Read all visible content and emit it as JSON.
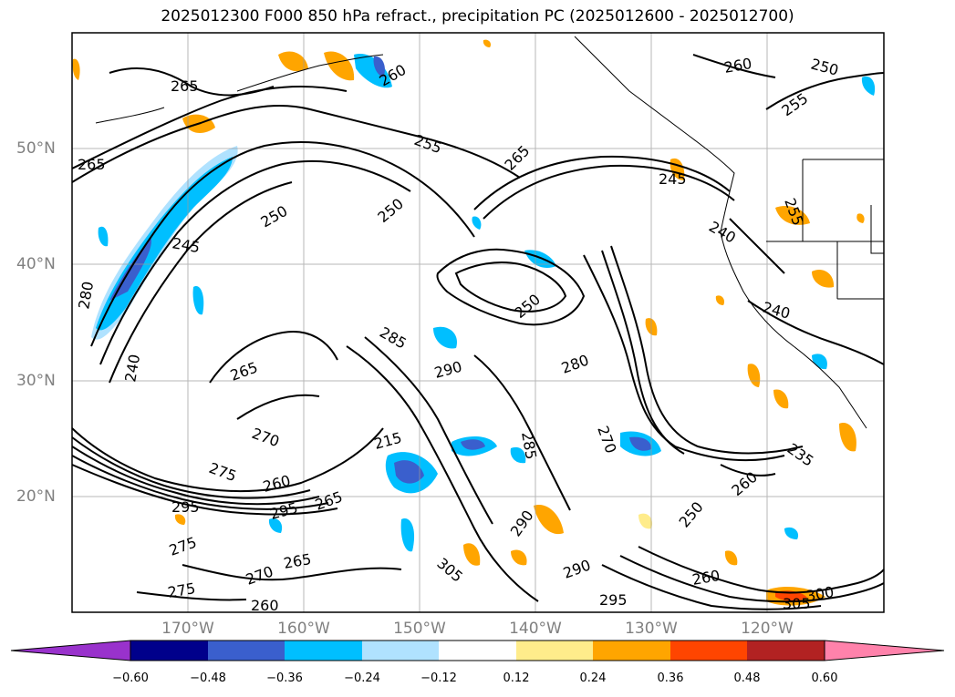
{
  "title": "2025012300 F000 850 hPa refract., precipitation PC (2025012600 - 2025012700)",
  "lat_labels": [
    "50°N",
    "40°N",
    "30°N",
    "20°N"
  ],
  "lon_labels": [
    "170°W",
    "160°W",
    "150°W",
    "140°W",
    "130°W",
    "120°W"
  ],
  "colorbar": {
    "colors": [
      "#9932cc",
      "#00008b",
      "#3a5fcd",
      "#00bfff",
      "#b0e2ff",
      "#ffffff",
      "#ffec8b",
      "#ffa500",
      "#ff4500",
      "#b22222",
      "#ff82ab"
    ],
    "tick_labels": [
      "−0.60",
      "−0.48",
      "−0.36",
      "−0.24",
      "−0.12",
      "0.12",
      "0.24",
      "0.36",
      "0.48",
      "0.60"
    ]
  },
  "contour_labels": [
    "265",
    "260",
    "250",
    "255",
    "265",
    "250",
    "245",
    "260",
    "265",
    "250",
    "245",
    "255",
    "240",
    "280",
    "255",
    "285",
    "250",
    "265",
    "290",
    "280",
    "240",
    "240",
    "270",
    "275",
    "215",
    "260",
    "285",
    "270",
    "235",
    "295",
    "265",
    "295",
    "260",
    "275",
    "290",
    "290",
    "250",
    "260",
    "260",
    "270",
    "305",
    "295",
    "305",
    "300",
    "275",
    "265"
  ],
  "shading_colors": {
    "neg_light": "#b0e2ff",
    "neg_mid": "#00bfff",
    "neg_strong": "#3a5fcd",
    "pos_light": "#ffec8b",
    "pos_mid": "#ffa500",
    "pos_strong": "#ff4500"
  }
}
